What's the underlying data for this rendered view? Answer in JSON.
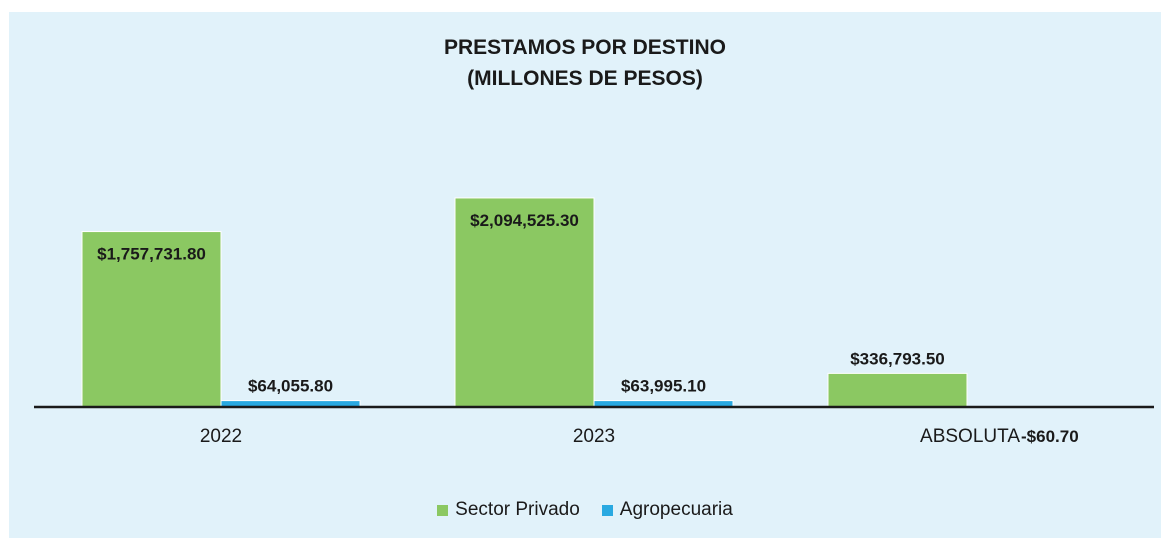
{
  "chart_data": {
    "type": "bar",
    "title": "PRESTAMOS POR DESTINO",
    "subtitle": "(MILLONES DE PESOS)",
    "categories": [
      "2022",
      "2023",
      "ABSOLUTA"
    ],
    "series": [
      {
        "name": "Sector Privado",
        "color": "#8bc862",
        "values": [
          1757731.8,
          2094525.3,
          336793.5
        ],
        "labels": [
          "$1,757,731.80",
          "$2,094,525.30",
          "$336,793.50"
        ]
      },
      {
        "name": "Agropecuaria",
        "color": "#29a9e1",
        "values": [
          64055.8,
          63995.1,
          -60.7
        ],
        "labels": [
          "$64,055.80",
          "$63,995.10",
          "-$60.70"
        ]
      }
    ],
    "ylim": [
      0,
      2400000
    ],
    "grid": false,
    "legend": "bottom"
  }
}
